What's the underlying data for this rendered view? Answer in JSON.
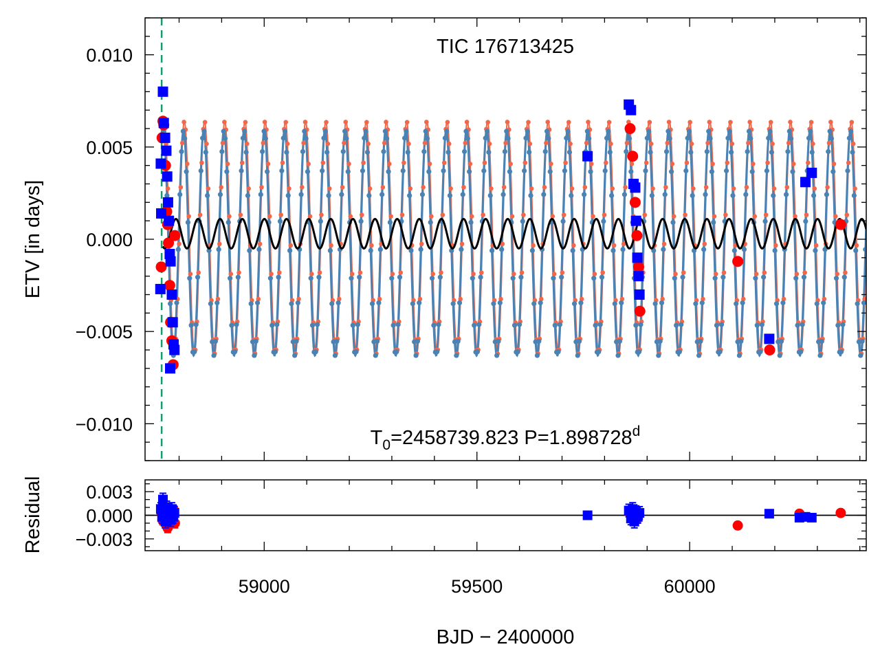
{
  "colors": {
    "primary_obs": "#ff0000",
    "secondary_obs": "#0000ff",
    "model_primary": "#f2674a",
    "model_secondary": "#4a83b3",
    "ltte_curve": "#000000",
    "t0_marker": "#1a9a6c",
    "background": "#ffffff"
  },
  "chart_data": [
    {
      "type": "scatter",
      "panel": "main",
      "title": "TIC 176713425",
      "annotation": {
        "t0_prefix": "T",
        "t0_subscript": "0",
        "t0_value": "=2458739.823 P=1.898728",
        "period_superscript": "d"
      },
      "xlabel": "",
      "ylabel": "ETV [in days]",
      "xlim": [
        58720,
        60415
      ],
      "ylim": [
        -0.012,
        0.012
      ],
      "x_tick_values": [
        59000,
        59500,
        60000
      ],
      "y_tick_values": [
        0.01,
        0.005,
        0.0,
        -0.005,
        -0.01
      ],
      "y_tick_labels": [
        "0.010",
        "0.005",
        "0.000",
        "−0.005",
        "−0.010"
      ],
      "grid": false,
      "t0_line_x": 58759,
      "model": {
        "oscillation_period_days": 47.5,
        "secondary_amplitude": 0.0061,
        "secondary_offset": -0.0002,
        "primary_amplitude": 0.0063,
        "primary_offset": 0.0001,
        "x_start": 58762,
        "x_end": 60415
      },
      "ltte_curve": {
        "period_days": 52,
        "amplitude": 0.0008,
        "offset": 0.0003,
        "x_start": 58762,
        "x_end": 60415
      },
      "series": [
        {
          "name": "",
          "marker": "circle",
          "color": "#ff0000",
          "points": [
            [
              58758,
              -0.0015
            ],
            [
              58760,
              0.0055
            ],
            [
              58762,
              0.0064
            ],
            [
              58764,
              0.0062
            ],
            [
              58768,
              0.004
            ],
            [
              58771,
              0.0015
            ],
            [
              58773,
              0.0008
            ],
            [
              58775,
              -0.0002
            ],
            [
              58778,
              -0.0025
            ],
            [
              58780,
              -0.0045
            ],
            [
              58783,
              -0.0055
            ],
            [
              58786,
              -0.0068
            ],
            [
              58790,
              0.0002
            ],
            [
              59860,
              0.006
            ],
            [
              59866,
              0.0045
            ],
            [
              59872,
              0.002
            ],
            [
              59876,
              0.0002
            ],
            [
              59880,
              -0.0015
            ],
            [
              59883,
              -0.0039
            ],
            [
              60113,
              -0.0012
            ],
            [
              60188,
              -0.006
            ],
            [
              60355,
              0.0008
            ]
          ]
        },
        {
          "name": "",
          "marker": "square",
          "color": "#0000ff",
          "points": [
            [
              58756,
              -0.0027
            ],
            [
              58757,
              0.0041
            ],
            [
              58758,
              0.0014
            ],
            [
              58762,
              0.008
            ],
            [
              58764,
              0.0063
            ],
            [
              58767,
              0.0055
            ],
            [
              58770,
              0.0048
            ],
            [
              58772,
              0.0034
            ],
            [
              58774,
              0.002
            ],
            [
              58776,
              0.001
            ],
            [
              58778,
              -0.0008
            ],
            [
              58780,
              -0.0012
            ],
            [
              58779,
              -0.007
            ],
            [
              58783,
              -0.003
            ],
            [
              58785,
              -0.0045
            ],
            [
              58787,
              -0.0057
            ],
            [
              58789,
              -0.006
            ],
            [
              59760,
              0.0045
            ],
            [
              59857,
              0.0073
            ],
            [
              59862,
              0.007
            ],
            [
              59868,
              0.003
            ],
            [
              59872,
              0.0028
            ],
            [
              59874,
              0.001
            ],
            [
              59877,
              -0.001
            ],
            [
              59880,
              -0.002
            ],
            [
              59882,
              -0.003
            ],
            [
              60187,
              -0.0054
            ],
            [
              60272,
              0.0031
            ],
            [
              60287,
              0.0036
            ]
          ]
        }
      ]
    },
    {
      "type": "scatter",
      "panel": "residual",
      "xlabel": "BJD − 2400000",
      "ylabel": "Residual",
      "xlim": [
        58720,
        60415
      ],
      "ylim": [
        -0.0045,
        0.0045
      ],
      "x_tick_values": [
        59000,
        59500,
        60000
      ],
      "x_tick_labels": [
        "59000",
        "59500",
        "60000"
      ],
      "y_tick_values": [
        0.003,
        0.0,
        -0.003
      ],
      "y_tick_labels": [
        "0.003",
        "0.000",
        "−0.003"
      ],
      "zero_line": true,
      "grid": false,
      "series": [
        {
          "name": "",
          "marker": "circle",
          "color": "#ff0000",
          "points": [
            [
              58758,
              0.0004
            ],
            [
              58761,
              -0.0006
            ],
            [
              58764,
              0.001
            ],
            [
              58767,
              -0.001
            ],
            [
              58770,
              0.0006
            ],
            [
              58773,
              -0.0016
            ],
            [
              58776,
              0.0002
            ],
            [
              58779,
              -0.0008
            ],
            [
              58782,
              0.0004
            ],
            [
              58785,
              -0.0004
            ],
            [
              58788,
              0.0006
            ],
            [
              58790,
              -0.001
            ],
            [
              59860,
              0.0003
            ],
            [
              59866,
              -0.0004
            ],
            [
              59872,
              0.0002
            ],
            [
              59878,
              -0.0003
            ],
            [
              60113,
              -0.0013
            ],
            [
              60258,
              0.0002
            ],
            [
              60355,
              0.0003
            ]
          ],
          "errors": [
            0.0006,
            0.0006,
            0.0006,
            0.0006,
            0.0006,
            0.0006,
            0.0006,
            0.0006,
            0.0006,
            0.0006,
            0.0006,
            0.0006,
            0.0006,
            0.0006,
            0.0006,
            0.0006,
            0.0004,
            0.0004,
            0.0004
          ]
        },
        {
          "name": "",
          "marker": "square",
          "color": "#0000ff",
          "points": [
            [
              58757,
              0.0008
            ],
            [
              58760,
              -0.0002
            ],
            [
              58762,
              0.002
            ],
            [
              58765,
              0.0004
            ],
            [
              58768,
              -0.0008
            ],
            [
              58771,
              0.001
            ],
            [
              58774,
              -0.0004
            ],
            [
              58777,
              0.0006
            ],
            [
              58780,
              -0.0006
            ],
            [
              58783,
              0.0008
            ],
            [
              58786,
              -0.0002
            ],
            [
              58789,
              0.0003
            ],
            [
              59760,
              0.0
            ],
            [
              59857,
              0.0006
            ],
            [
              59862,
              -0.0004
            ],
            [
              59866,
              0.0008
            ],
            [
              59870,
              -0.0008
            ],
            [
              59874,
              0.0004
            ],
            [
              59878,
              -0.0002
            ],
            [
              59882,
              0.0003
            ],
            [
              60187,
              0.0002
            ],
            [
              60258,
              -0.0003
            ],
            [
              60272,
              -0.0002
            ],
            [
              60287,
              -0.0003
            ]
          ],
          "errors": [
            0.0008,
            0.0008,
            0.0008,
            0.0008,
            0.0008,
            0.0008,
            0.0008,
            0.0008,
            0.0008,
            0.0008,
            0.0008,
            0.0008,
            0.0004,
            0.0008,
            0.0008,
            0.0008,
            0.0008,
            0.0008,
            0.0008,
            0.0008,
            0.0004,
            0.0004,
            0.0004,
            0.0004
          ]
        }
      ]
    }
  ]
}
